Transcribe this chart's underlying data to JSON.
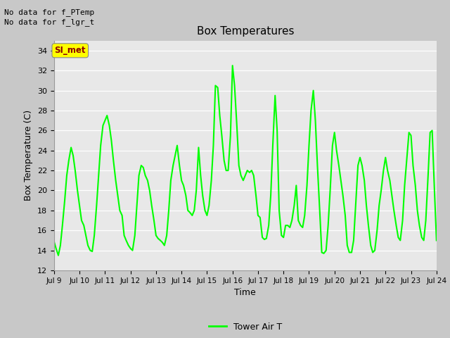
{
  "title": "Box Temperatures",
  "xlabel": "Time",
  "ylabel": "Box Temperature (C)",
  "ylim": [
    12,
    35
  ],
  "yticks": [
    12,
    14,
    16,
    18,
    20,
    22,
    24,
    26,
    28,
    30,
    32,
    34
  ],
  "line_color": "#00FF00",
  "line_width": 1.5,
  "fig_bg_color": "#C8C8C8",
  "plot_bg_color": "#E8E8E8",
  "no_data_text": [
    "No data for f_PTemp",
    "No data for f_lgr_t"
  ],
  "si_met_label": "SI_met",
  "legend_label": "Tower Air T",
  "x_tick_labels": [
    "Jul 9",
    "Jul 10",
    "Jul 11",
    "Jul 12",
    "Jul 13",
    "Jul 14",
    "Jul 15",
    "Jul 16",
    "Jul 17",
    "Jul 18",
    "Jul 19",
    "Jul 20",
    "Jul 21",
    "Jul 22",
    "Jul 23",
    "Jul 24"
  ],
  "x_tick_positions": [
    0,
    1,
    2,
    3,
    4,
    5,
    6,
    7,
    8,
    9,
    10,
    11,
    12,
    13,
    14,
    15
  ],
  "data_x": [
    0.0,
    0.08,
    0.17,
    0.25,
    0.33,
    0.42,
    0.5,
    0.58,
    0.67,
    0.75,
    0.83,
    0.92,
    1.0,
    1.08,
    1.17,
    1.25,
    1.33,
    1.42,
    1.5,
    1.58,
    1.67,
    1.75,
    1.83,
    1.92,
    2.0,
    2.08,
    2.17,
    2.25,
    2.33,
    2.42,
    2.5,
    2.58,
    2.67,
    2.75,
    2.83,
    2.92,
    3.0,
    3.08,
    3.17,
    3.25,
    3.33,
    3.42,
    3.5,
    3.58,
    3.67,
    3.75,
    3.83,
    3.92,
    4.0,
    4.08,
    4.17,
    4.25,
    4.33,
    4.42,
    4.5,
    4.58,
    4.67,
    4.75,
    4.83,
    4.92,
    5.0,
    5.08,
    5.17,
    5.25,
    5.33,
    5.42,
    5.5,
    5.58,
    5.67,
    5.75,
    5.83,
    5.92,
    6.0,
    6.08,
    6.17,
    6.25,
    6.33,
    6.42,
    6.5,
    6.58,
    6.67,
    6.75,
    6.83,
    6.92,
    7.0,
    7.08,
    7.17,
    7.25,
    7.33,
    7.42,
    7.5,
    7.58,
    7.67,
    7.75,
    7.83,
    7.92,
    8.0,
    8.08,
    8.17,
    8.25,
    8.33,
    8.42,
    8.5,
    8.58,
    8.67,
    8.75,
    8.83,
    8.92,
    9.0,
    9.08,
    9.17,
    9.25,
    9.33,
    9.42,
    9.5,
    9.58,
    9.67,
    9.75,
    9.83,
    9.92,
    10.0,
    10.08,
    10.17,
    10.25,
    10.33,
    10.42,
    10.5,
    10.58,
    10.67,
    10.75,
    10.83,
    10.92,
    11.0,
    11.08,
    11.17,
    11.25,
    11.33,
    11.42,
    11.5,
    11.58,
    11.67,
    11.75,
    11.83,
    11.92,
    12.0,
    12.08,
    12.17,
    12.25,
    12.33,
    12.42,
    12.5,
    12.58,
    12.67,
    12.75,
    12.83,
    12.92,
    13.0,
    13.08,
    13.17,
    13.25,
    13.33,
    13.42,
    13.5,
    13.58,
    13.67,
    13.75,
    13.83,
    13.92,
    14.0,
    14.08,
    14.17,
    14.25,
    14.33,
    14.42,
    14.5,
    14.58,
    14.67,
    14.75,
    14.83,
    14.92,
    15.0
  ],
  "data_y": [
    14.9,
    14.2,
    13.5,
    14.5,
    16.5,
    19.0,
    21.5,
    23.0,
    24.3,
    23.5,
    22.0,
    20.0,
    18.5,
    17.0,
    16.5,
    15.5,
    14.5,
    14.0,
    13.9,
    15.5,
    18.5,
    21.5,
    24.5,
    26.5,
    27.0,
    27.5,
    26.5,
    25.0,
    23.0,
    21.0,
    19.5,
    18.0,
    17.5,
    15.5,
    15.0,
    14.5,
    14.2,
    14.0,
    15.5,
    18.5,
    21.5,
    22.5,
    22.3,
    21.5,
    21.0,
    20.0,
    18.5,
    17.0,
    15.5,
    15.2,
    15.0,
    14.8,
    14.5,
    15.5,
    18.0,
    21.0,
    22.5,
    23.5,
    24.5,
    22.5,
    21.0,
    20.5,
    19.5,
    18.0,
    17.8,
    17.5,
    18.0,
    20.0,
    24.3,
    21.5,
    19.5,
    18.0,
    17.5,
    18.5,
    21.0,
    24.5,
    30.5,
    30.3,
    27.5,
    25.5,
    23.0,
    22.0,
    22.0,
    25.5,
    32.5,
    30.5,
    26.5,
    22.5,
    21.5,
    21.0,
    21.5,
    22.0,
    21.8,
    22.0,
    21.5,
    19.5,
    17.5,
    17.3,
    15.3,
    15.1,
    15.2,
    16.5,
    19.5,
    24.5,
    29.5,
    26.0,
    18.0,
    15.5,
    15.3,
    16.5,
    16.5,
    16.3,
    17.0,
    18.5,
    20.5,
    17.0,
    16.5,
    16.3,
    17.5,
    20.5,
    24.5,
    28.0,
    30.0,
    27.0,
    22.5,
    18.0,
    13.8,
    13.7,
    14.0,
    16.5,
    20.0,
    24.5,
    25.8,
    24.0,
    22.5,
    21.0,
    19.5,
    17.5,
    14.5,
    13.8,
    13.8,
    15.0,
    18.5,
    22.5,
    23.3,
    22.5,
    21.0,
    18.5,
    16.5,
    14.5,
    13.8,
    14.0,
    16.0,
    18.5,
    20.0,
    22.0,
    23.3,
    22.0,
    21.0,
    19.5,
    18.0,
    16.5,
    15.3,
    15.0,
    17.0,
    20.5,
    23.0,
    25.8,
    25.5,
    22.5,
    20.5,
    18.0,
    16.5,
    15.3,
    15.0,
    17.0,
    21.5,
    25.8,
    26.0,
    20.0,
    15.0
  ]
}
